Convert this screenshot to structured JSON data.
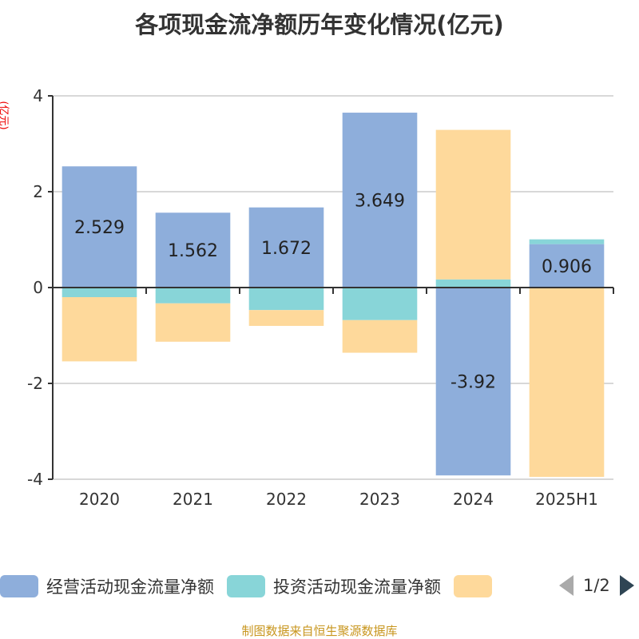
{
  "chart_data": {
    "type": "bar",
    "stacked": true,
    "title": "各项现金流净额历年变化情况(亿元)",
    "ylabel": "(亿元)",
    "categories": [
      "2020",
      "2021",
      "2022",
      "2023",
      "2024",
      "2025H1"
    ],
    "ylim": [
      -4,
      4
    ],
    "yticks": [
      4,
      2,
      0,
      -2,
      -4
    ],
    "grid": true,
    "legend_position": "bottom",
    "series": [
      {
        "name": "经营活动现金流量净额",
        "color": "#8eaedb",
        "values": [
          2.529,
          1.562,
          1.672,
          3.649,
          -3.92,
          0.906
        ],
        "labels": [
          "2.529",
          "1.562",
          "1.672",
          "3.649",
          "-3.92",
          "0.906"
        ]
      },
      {
        "name": "投资活动现金流量净额",
        "color": "#88d5d8",
        "values": [
          -0.2,
          -0.33,
          -0.47,
          -0.68,
          0.17,
          0.1
        ]
      },
      {
        "name": "",
        "color": "#fed99b",
        "values": [
          -1.34,
          -0.8,
          -0.33,
          -0.68,
          3.12,
          -3.95
        ]
      }
    ]
  },
  "legend": {
    "page": "1/2"
  },
  "source": "制图数据来自恒生聚源数据库"
}
